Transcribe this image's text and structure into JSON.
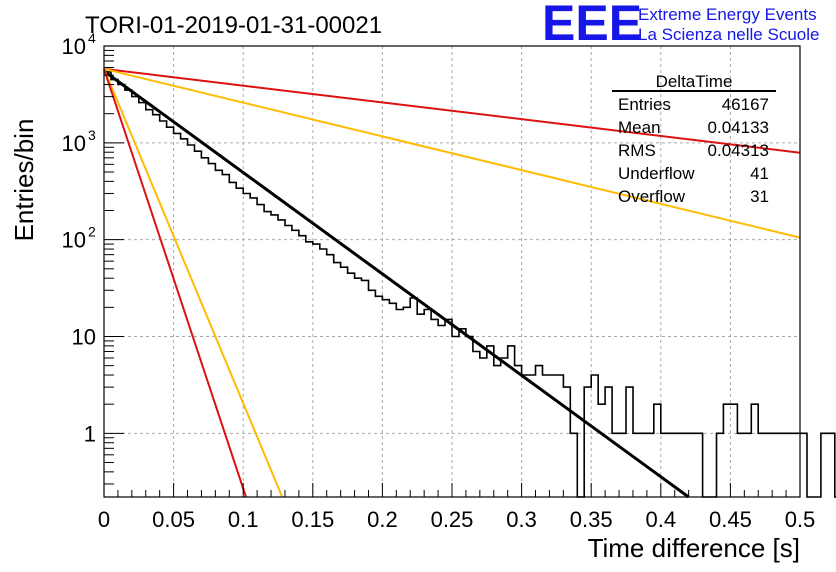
{
  "title": "TORI-01-2019-01-31-00021",
  "brand": {
    "logo": "EEE",
    "line1": "Extreme Energy Events",
    "line2": "La Scienza nelle Scuole"
  },
  "stats": {
    "name": "DeltaTime",
    "rows": [
      {
        "label": "Entries",
        "value": "46167"
      },
      {
        "label": "Mean",
        "value": "0.04133"
      },
      {
        "label": "RMS",
        "value": "0.04313"
      },
      {
        "label": "Underflow",
        "value": "41"
      },
      {
        "label": "Overflow",
        "value": "31"
      }
    ]
  },
  "chart_data": {
    "type": "line",
    "title": "TORI-01-2019-01-31-00021",
    "xlabel": "Time difference [s]",
    "ylabel": "Entries/bin",
    "xlim": [
      0,
      0.5
    ],
    "ylim": [
      0.22,
      10000
    ],
    "yscale": "log",
    "grid": true,
    "x_ticks": [
      {
        "v": 0,
        "label": "0"
      },
      {
        "v": 0.05,
        "label": "0.05"
      },
      {
        "v": 0.1,
        "label": "0.1"
      },
      {
        "v": 0.15,
        "label": "0.15"
      },
      {
        "v": 0.2,
        "label": "0.2"
      },
      {
        "v": 0.25,
        "label": "0.25"
      },
      {
        "v": 0.3,
        "label": "0.3"
      },
      {
        "v": 0.35,
        "label": "0.35"
      },
      {
        "v": 0.4,
        "label": "0.4"
      },
      {
        "v": 0.45,
        "label": "0.45"
      },
      {
        "v": 0.5,
        "label": "0.5"
      }
    ],
    "y_ticks": [
      {
        "v": 1,
        "label": "1"
      },
      {
        "v": 10,
        "label": "10"
      },
      {
        "v": 100,
        "label": "10",
        "exp": "2"
      },
      {
        "v": 1000,
        "label": "10",
        "exp": "3"
      },
      {
        "v": 10000,
        "label": "10",
        "exp": "4"
      }
    ],
    "histogram": {
      "bin_width": 0.005,
      "color": "#000000",
      "counts": [
        5400,
        4500,
        4000,
        3500,
        3000,
        2600,
        2200,
        1950,
        1680,
        1450,
        1250,
        1100,
        950,
        820,
        700,
        610,
        520,
        470,
        390,
        340,
        300,
        270,
        230,
        195,
        180,
        160,
        140,
        125,
        110,
        95,
        90,
        80,
        70,
        58,
        52,
        45,
        40,
        38,
        30,
        26,
        24,
        22,
        19,
        20,
        25,
        17,
        19,
        15,
        13,
        15,
        10,
        12,
        10,
        7,
        6,
        8,
        5,
        6,
        8,
        5,
        4,
        4,
        5,
        4,
        4,
        4,
        3,
        1,
        0.22,
        3,
        4,
        2,
        3,
        1,
        1,
        3,
        1,
        1,
        1,
        2,
        1,
        1,
        1,
        1,
        1,
        1,
        0.22,
        0.22,
        1,
        2,
        2,
        1,
        1,
        2,
        1,
        1,
        1,
        1,
        1,
        1,
        1,
        0.22,
        0.22,
        1,
        1,
        0.22,
        0.22,
        1,
        1,
        1,
        1,
        0.22
      ]
    },
    "series": [
      {
        "color": "#000000",
        "x": [
          0,
          0.42
        ],
        "y": [
          5500,
          0.22
        ]
      },
      {
        "color": "#dd1111",
        "x": [
          0,
          0.5
        ],
        "y": [
          5800,
          790
        ]
      },
      {
        "color": "#ffbb00",
        "x": [
          0,
          0.5
        ],
        "y": [
          5800,
          105
        ]
      },
      {
        "color": "#ffbb00",
        "x": [
          0,
          0.128
        ],
        "y": [
          5800,
          0.22
        ]
      },
      {
        "color": "#dd1111",
        "x": [
          0,
          0.102
        ],
        "y": [
          5800,
          0.22
        ]
      }
    ]
  }
}
